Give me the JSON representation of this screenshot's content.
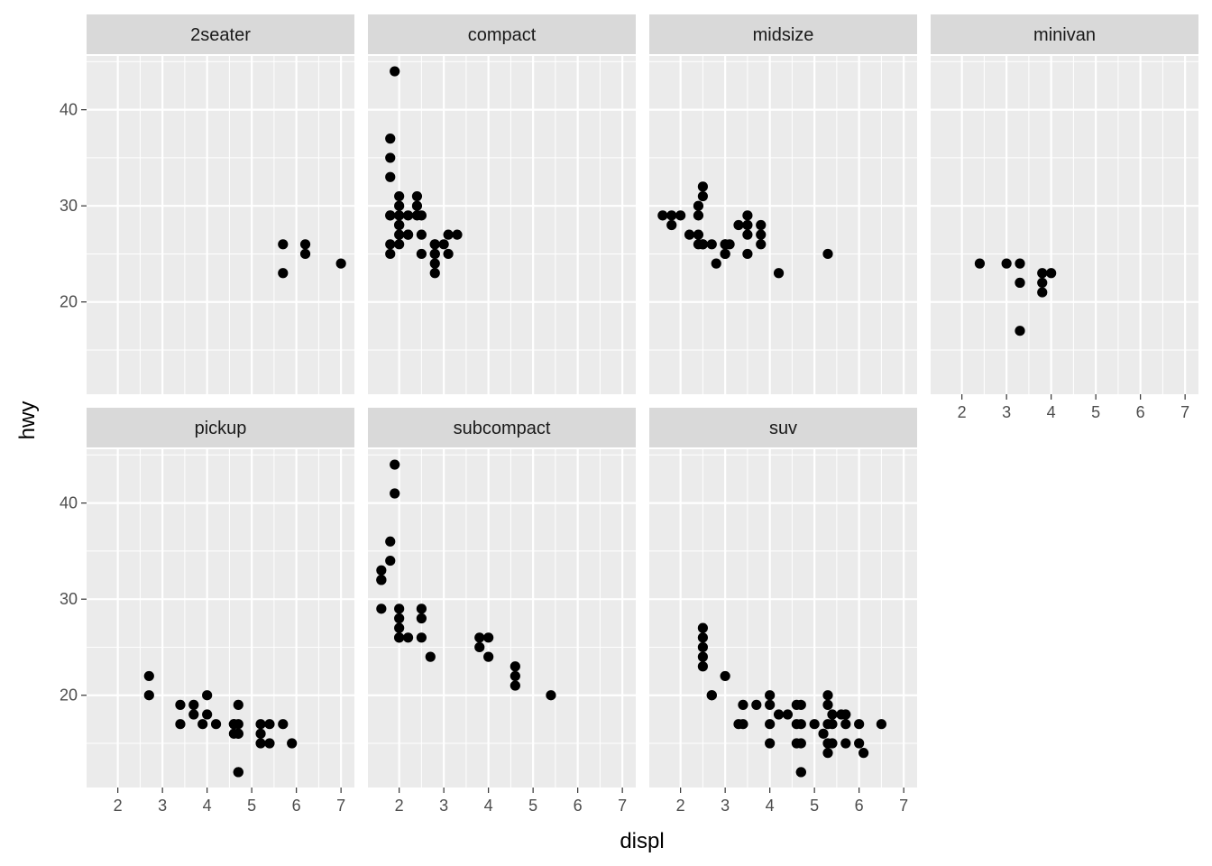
{
  "chart_data": {
    "type": "scatter",
    "facet_by": "class",
    "xlabel": "displ",
    "ylabel": "hwy",
    "xlim": [
      1.3,
      7.3
    ],
    "ylim": [
      10.4,
      45.6
    ],
    "x_ticks": [
      2,
      3,
      4,
      5,
      6,
      7
    ],
    "y_ticks": [
      20,
      30,
      40
    ],
    "x_tick_labels": [
      "2",
      "3",
      "4",
      "5",
      "6",
      "7"
    ],
    "y_tick_labels": [
      "20",
      "30",
      "40"
    ],
    "grid": true,
    "colors": {
      "panel_bg": "#ebebeb",
      "strip_bg": "#d9d9d9",
      "grid": "#ffffff",
      "point": "#000000",
      "tick": "#333333"
    },
    "panels": [
      {
        "name": "2seater",
        "points": [
          [
            5.7,
            26
          ],
          [
            5.7,
            23
          ],
          [
            6.2,
            26
          ],
          [
            6.2,
            25
          ],
          [
            7.0,
            24
          ]
        ]
      },
      {
        "name": "compact",
        "points": [
          [
            1.8,
            29
          ],
          [
            1.8,
            29
          ],
          [
            2.0,
            31
          ],
          [
            2.0,
            30
          ],
          [
            2.8,
            26
          ],
          [
            2.8,
            26
          ],
          [
            3.1,
            27
          ],
          [
            1.8,
            26
          ],
          [
            1.8,
            25
          ],
          [
            2.0,
            28
          ],
          [
            2.0,
            27
          ],
          [
            2.8,
            25
          ],
          [
            2.8,
            25
          ],
          [
            3.1,
            25
          ],
          [
            2.4,
            30
          ],
          [
            2.4,
            31
          ],
          [
            2.2,
            29
          ],
          [
            2.2,
            27
          ],
          [
            3.0,
            26
          ],
          [
            3.3,
            27
          ],
          [
            1.8,
            33
          ],
          [
            1.8,
            35
          ],
          [
            1.8,
            37
          ],
          [
            1.9,
            44
          ],
          [
            2.0,
            29
          ],
          [
            2.0,
            28
          ],
          [
            2.0,
            26
          ],
          [
            2.5,
            29
          ],
          [
            2.5,
            25
          ],
          [
            2.5,
            27
          ],
          [
            2.8,
            24
          ],
          [
            2.8,
            23
          ],
          [
            2.2,
            27
          ],
          [
            2.4,
            29
          ]
        ]
      },
      {
        "name": "midsize",
        "points": [
          [
            2.4,
            27
          ],
          [
            2.4,
            30
          ],
          [
            2.5,
            31
          ],
          [
            2.5,
            32
          ],
          [
            2.5,
            26
          ],
          [
            3.0,
            26
          ],
          [
            3.0,
            25
          ],
          [
            3.3,
            28
          ],
          [
            3.5,
            29
          ],
          [
            3.5,
            28
          ],
          [
            3.5,
            27
          ],
          [
            3.8,
            28
          ],
          [
            3.8,
            26
          ],
          [
            3.8,
            27
          ],
          [
            1.6,
            29
          ],
          [
            1.8,
            29
          ],
          [
            2.0,
            29
          ],
          [
            2.2,
            27
          ],
          [
            2.5,
            26
          ],
          [
            2.7,
            26
          ],
          [
            2.8,
            24
          ],
          [
            3.0,
            25
          ],
          [
            3.1,
            26
          ],
          [
            3.5,
            25
          ],
          [
            4.2,
            23
          ],
          [
            5.3,
            25
          ],
          [
            2.4,
            26
          ],
          [
            2.4,
            29
          ],
          [
            1.8,
            28
          ],
          [
            3.0,
            26
          ]
        ]
      },
      {
        "name": "minivan",
        "points": [
          [
            2.4,
            24
          ],
          [
            3.0,
            24
          ],
          [
            3.3,
            22
          ],
          [
            3.3,
            24
          ],
          [
            3.3,
            22
          ],
          [
            3.3,
            17
          ],
          [
            3.8,
            22
          ],
          [
            3.8,
            21
          ],
          [
            3.8,
            23
          ],
          [
            4.0,
            23
          ]
        ]
      },
      {
        "name": "pickup",
        "points": [
          [
            2.7,
            20
          ],
          [
            2.7,
            22
          ],
          [
            3.4,
            17
          ],
          [
            3.4,
            19
          ],
          [
            3.7,
            18
          ],
          [
            3.7,
            19
          ],
          [
            3.9,
            17
          ],
          [
            4.0,
            20
          ],
          [
            4.0,
            18
          ],
          [
            4.2,
            17
          ],
          [
            4.7,
            17
          ],
          [
            4.7,
            12
          ],
          [
            4.7,
            16
          ],
          [
            4.7,
            19
          ],
          [
            4.6,
            17
          ],
          [
            4.6,
            16
          ],
          [
            5.2,
            17
          ],
          [
            5.2,
            15
          ],
          [
            5.4,
            17
          ],
          [
            5.4,
            15
          ],
          [
            5.7,
            17
          ],
          [
            5.9,
            15
          ],
          [
            4.7,
            16
          ],
          [
            5.2,
            16
          ],
          [
            4.7,
            12
          ],
          [
            4.6,
            17
          ]
        ]
      },
      {
        "name": "subcompact",
        "points": [
          [
            1.6,
            32
          ],
          [
            1.6,
            33
          ],
          [
            1.6,
            32
          ],
          [
            1.6,
            29
          ],
          [
            1.8,
            34
          ],
          [
            1.8,
            36
          ],
          [
            1.9,
            41
          ],
          [
            1.9,
            44
          ],
          [
            2.0,
            29
          ],
          [
            2.0,
            28
          ],
          [
            2.0,
            27
          ],
          [
            2.0,
            26
          ],
          [
            2.0,
            26
          ],
          [
            2.2,
            26
          ],
          [
            2.5,
            29
          ],
          [
            2.5,
            28
          ],
          [
            2.5,
            26
          ],
          [
            2.7,
            24
          ],
          [
            3.8,
            26
          ],
          [
            3.8,
            25
          ],
          [
            4.0,
            26
          ],
          [
            4.0,
            24
          ],
          [
            4.6,
            23
          ],
          [
            4.6,
            22
          ],
          [
            4.6,
            21
          ],
          [
            5.4,
            20
          ]
        ]
      },
      {
        "name": "suv",
        "points": [
          [
            2.5,
            27
          ],
          [
            2.5,
            26
          ],
          [
            2.5,
            25
          ],
          [
            2.5,
            24
          ],
          [
            2.5,
            23
          ],
          [
            2.7,
            20
          ],
          [
            2.7,
            20
          ],
          [
            3.0,
            22
          ],
          [
            3.3,
            17
          ],
          [
            3.4,
            19
          ],
          [
            3.4,
            17
          ],
          [
            3.7,
            19
          ],
          [
            4.0,
            20
          ],
          [
            4.0,
            19
          ],
          [
            4.0,
            17
          ],
          [
            4.0,
            15
          ],
          [
            4.2,
            18
          ],
          [
            4.4,
            18
          ],
          [
            4.6,
            17
          ],
          [
            4.6,
            19
          ],
          [
            4.7,
            19
          ],
          [
            4.7,
            17
          ],
          [
            4.7,
            15
          ],
          [
            4.7,
            12
          ],
          [
            4.6,
            15
          ],
          [
            5.0,
            17
          ],
          [
            5.2,
            16
          ],
          [
            5.3,
            20
          ],
          [
            5.3,
            19
          ],
          [
            5.3,
            17
          ],
          [
            5.3,
            15
          ],
          [
            5.3,
            14
          ],
          [
            5.4,
            18
          ],
          [
            5.4,
            17
          ],
          [
            5.4,
            15
          ],
          [
            5.6,
            18
          ],
          [
            5.7,
            18
          ],
          [
            5.7,
            17
          ],
          [
            5.7,
            15
          ],
          [
            6.0,
            17
          ],
          [
            6.0,
            15
          ],
          [
            6.1,
            14
          ],
          [
            6.5,
            17
          ],
          [
            4.7,
            12
          ]
        ]
      }
    ]
  }
}
